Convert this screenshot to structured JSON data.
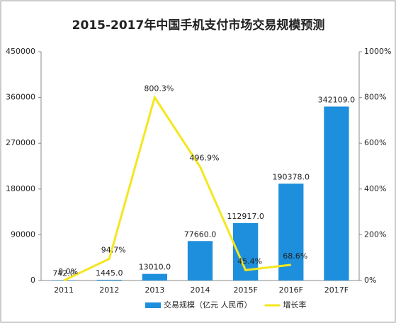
{
  "chart_data": {
    "type": "bar-line",
    "title": "2015-2017年中国手机支付市场交易规模预测",
    "categories": [
      "2011",
      "2012",
      "2013",
      "2014",
      "2015F",
      "2016F",
      "2017F"
    ],
    "series": [
      {
        "name": "交易规模（亿元 人民币）",
        "type": "bar",
        "color": "#1e8fdc",
        "values": [
          742.0,
          1445.0,
          13010.0,
          77660.0,
          112917.0,
          190378.0,
          342109.0
        ],
        "value_labels": [
          "742.0",
          "1445.0",
          "13010.0",
          "77660.0",
          "112917.0",
          "190378.0",
          "342109.0"
        ]
      },
      {
        "name": "增长率",
        "type": "line",
        "axis": "y2",
        "color": "#f5e61e",
        "values": [
          0.0,
          94.7,
          800.3,
          496.9,
          45.4,
          68.6,
          null
        ],
        "value_labels": [
          "0.0%",
          "94.7%",
          "800.3%",
          "496.9%",
          "45.4%",
          "68.6%",
          null
        ]
      }
    ],
    "ylim": [
      0,
      450000
    ],
    "yticks": [
      0,
      90000,
      180000,
      270000,
      360000,
      450000
    ],
    "y2lim": [
      0,
      1000
    ],
    "y2ticks": [
      {
        "value": 0,
        "label": "0%"
      },
      {
        "value": 200,
        "label": "200%"
      },
      {
        "value": 400,
        "label": "400%"
      },
      {
        "value": 600,
        "label": "600%"
      },
      {
        "value": 800,
        "label": "800%"
      },
      {
        "value": 1000,
        "label": "1000%"
      }
    ],
    "grid": false,
    "legend": "bottom"
  }
}
